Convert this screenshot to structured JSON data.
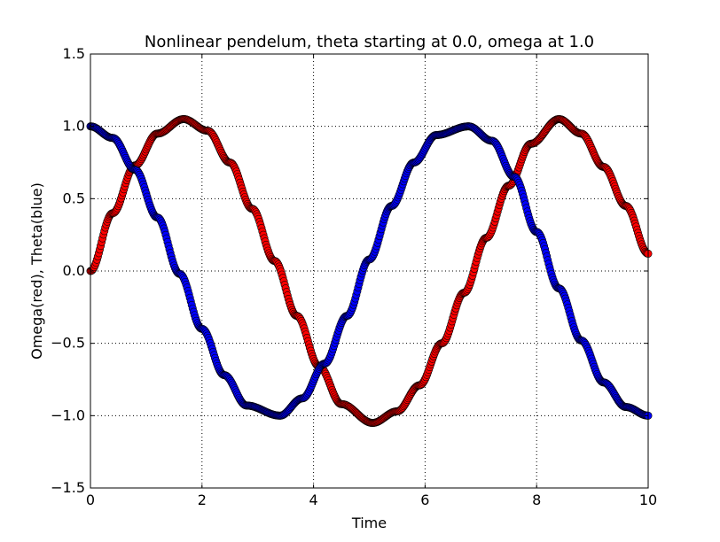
{
  "chart_data": {
    "type": "scatter",
    "title": "Nonlinear pendelum, theta starting at 0.0, omega at 1.0",
    "xlabel": "Time",
    "ylabel": "Omega(red), Theta(blue)",
    "xlim": [
      0,
      10
    ],
    "ylim": [
      -1.5,
      1.5
    ],
    "xticks": [
      "0",
      "2",
      "4",
      "6",
      "8",
      "10"
    ],
    "yticks": [
      "1.5",
      "1.0",
      "0.5",
      "0.0",
      "−0.5",
      "−1.0",
      "−1.5"
    ],
    "grid": true,
    "series": [
      {
        "color": "#ff0000",
        "x": [
          0.0,
          0.4,
          0.8,
          1.2,
          1.67,
          2.1,
          2.5,
          2.9,
          3.3,
          3.7,
          4.1,
          4.5,
          5.06,
          5.5,
          5.9,
          6.3,
          6.7,
          7.1,
          7.5,
          7.9,
          8.4,
          8.8,
          9.2,
          9.6,
          10.0
        ],
        "y": [
          0.0,
          0.4,
          0.73,
          0.95,
          1.05,
          0.97,
          0.75,
          0.43,
          0.07,
          -0.31,
          -0.66,
          -0.92,
          -1.05,
          -0.97,
          -0.79,
          -0.5,
          -0.15,
          0.23,
          0.59,
          0.88,
          1.05,
          0.95,
          0.72,
          0.45,
          0.12
        ]
      },
      {
        "color": "#0000ff",
        "x": [
          0.0,
          0.4,
          0.8,
          1.2,
          1.6,
          2.0,
          2.4,
          2.8,
          3.4,
          3.8,
          4.2,
          4.6,
          5.0,
          5.4,
          5.8,
          6.2,
          6.78,
          7.2,
          7.6,
          8.0,
          8.4,
          8.8,
          9.2,
          9.6,
          10.0
        ],
        "y": [
          1.0,
          0.92,
          0.7,
          0.37,
          -0.02,
          -0.4,
          -0.72,
          -0.93,
          -1.0,
          -0.88,
          -0.64,
          -0.31,
          0.08,
          0.45,
          0.75,
          0.94,
          1.0,
          0.9,
          0.65,
          0.27,
          -0.12,
          -0.48,
          -0.77,
          -0.94,
          -1.0
        ]
      }
    ]
  }
}
